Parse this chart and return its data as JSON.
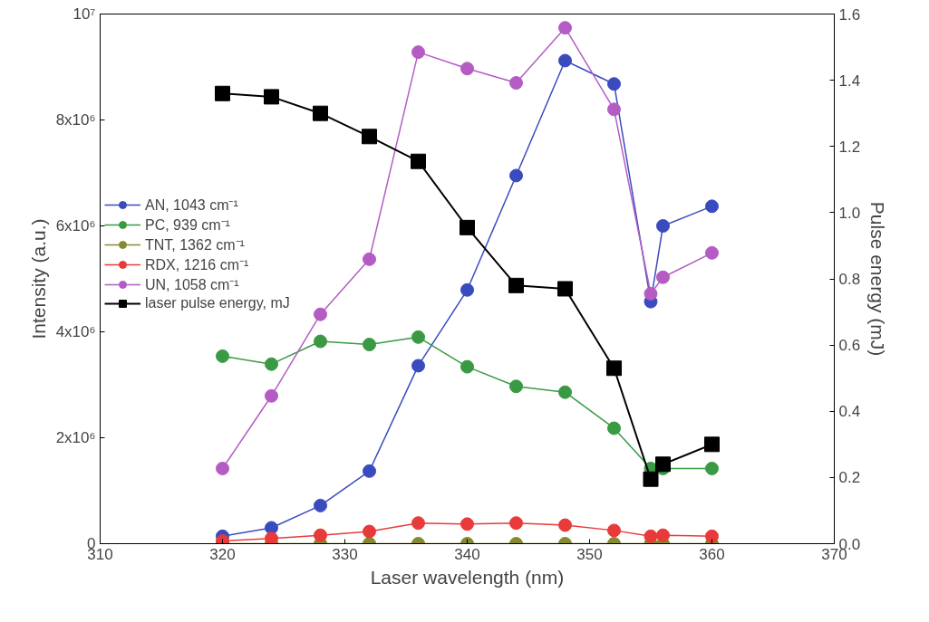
{
  "chart_data": {
    "type": "line",
    "xlabel": "Laser wavelength (nm)",
    "ylabel": "Intensity (a.u.)",
    "y2label": "Pulse energy (mJ)",
    "x": [
      320,
      324,
      328,
      332,
      336,
      340,
      344,
      348,
      352,
      355,
      356,
      360
    ],
    "xlim": [
      310,
      370
    ],
    "xticks": [
      310,
      320,
      330,
      340,
      350,
      360,
      370
    ],
    "ylim": [
      0,
      10000000
    ],
    "yticks": [
      0,
      {
        "value": 2000000,
        "label": "2x10⁶"
      },
      {
        "value": 4000000,
        "label": "4x10⁶"
      },
      {
        "value": 6000000,
        "label": "6x10⁶"
      },
      {
        "value": 8000000,
        "label": "8x10⁶"
      },
      {
        "value": 10000000,
        "label": "10⁷"
      }
    ],
    "y2lim": [
      0,
      1.6
    ],
    "y2ticks": [
      {
        "value": 0,
        "label": "0.0"
      },
      0.2,
      0.4,
      0.6,
      0.8,
      {
        "value": 1,
        "label": "1.0"
      },
      1.2,
      1.4,
      1.6
    ],
    "marker": "circle",
    "legend": "left",
    "grid": false,
    "series": [
      {
        "name": "AN, 1043 cm⁻¹",
        "color": "#3a4bbf",
        "values": [
          140000,
          300000,
          720000,
          1370000,
          3360000,
          4790000,
          6950000,
          9120000,
          8680000,
          4570000,
          6000000,
          6370000
        ]
      },
      {
        "name": "PC, 939 cm⁻¹",
        "color": "#3a9a44",
        "values": [
          3540000,
          3390000,
          3820000,
          3760000,
          3900000,
          3340000,
          2970000,
          2860000,
          2180000,
          1420000,
          1420000,
          1420000
        ]
      },
      {
        "name": "TNT, 1362 cm⁻¹",
        "color": "#858a30",
        "values": [
          0,
          0,
          0,
          0,
          0,
          0,
          0,
          0,
          0,
          0,
          0,
          0
        ]
      },
      {
        "name": "RDX, 1216 cm⁻¹",
        "color": "#e83a3a",
        "values": [
          50000,
          100000,
          160000,
          230000,
          390000,
          370000,
          390000,
          350000,
          250000,
          140000,
          160000,
          140000
        ]
      },
      {
        "name": "UN, 1058 cm⁻¹",
        "color": "#b45cc4",
        "values": [
          1420000,
          2790000,
          4330000,
          5370000,
          9280000,
          8970000,
          8700000,
          9740000,
          8200000,
          4720000,
          5030000,
          5490000
        ]
      },
      {
        "name": "laser pulse energy, mJ",
        "color": "#000000",
        "axis": "y2",
        "marker": "square",
        "values": [
          1.36,
          1.35,
          1.3,
          1.23,
          1.155,
          0.955,
          0.78,
          0.77,
          0.53,
          0.195,
          0.24,
          0.3
        ]
      }
    ]
  }
}
